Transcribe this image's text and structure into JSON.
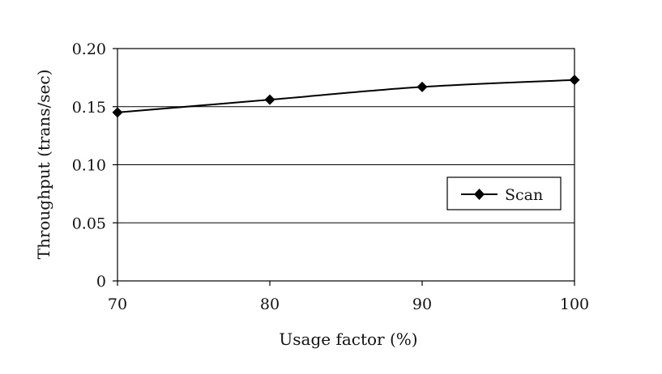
{
  "chart_data": {
    "type": "line",
    "title": "",
    "xlabel": "Usage factor (%)",
    "ylabel": "Throughput (trans/sec)",
    "x": [
      70,
      80,
      90,
      100
    ],
    "xlim": [
      70,
      100
    ],
    "xticks": [
      "70",
      "80",
      "90",
      "100"
    ],
    "ylim": [
      0,
      0.2
    ],
    "yticks": [
      "0",
      "0.05",
      "0.10",
      "0.15",
      "0.20"
    ],
    "grid": "horizontal",
    "legend_position": "right",
    "series": [
      {
        "name": "Scan",
        "marker": "diamond",
        "color": "#000000",
        "values": [
          0.145,
          0.156,
          0.167,
          0.173
        ]
      }
    ]
  }
}
